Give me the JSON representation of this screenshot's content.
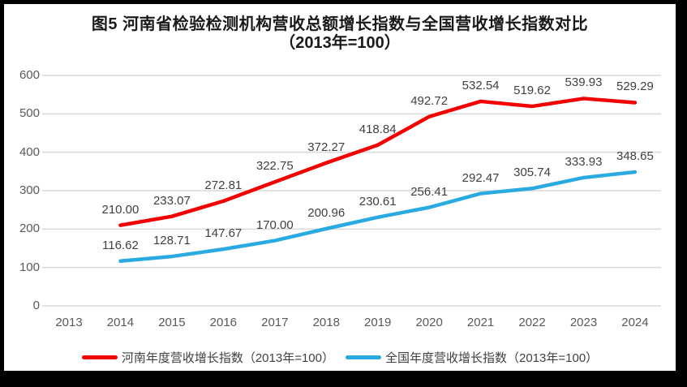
{
  "chart_data": {
    "type": "line",
    "title": "图5  河南省检验检测机构营收总额增长指数与全国营收增长指数对比",
    "subtitle": "（2013年=100）",
    "categories": [
      "2013",
      "2014",
      "2015",
      "2016",
      "2017",
      "2018",
      "2019",
      "2020",
      "2021",
      "2022",
      "2023",
      "2024"
    ],
    "series": [
      {
        "name": "河南年度营收增长指数（2013年=100）",
        "color": "#f40000",
        "values": [
          null,
          210.0,
          233.07,
          272.81,
          322.75,
          372.27,
          418.84,
          492.72,
          532.54,
          519.62,
          539.93,
          529.29
        ]
      },
      {
        "name": "全国年度营收增长指数（2013年=100）",
        "color": "#29abe2",
        "values": [
          null,
          116.62,
          128.71,
          147.67,
          170.0,
          200.96,
          230.61,
          256.41,
          292.47,
          305.74,
          333.93,
          348.65
        ]
      }
    ],
    "ylim": [
      0,
      600
    ],
    "ytick_step": 100,
    "yticks": [
      "0",
      "100",
      "200",
      "300",
      "400",
      "500",
      "600"
    ],
    "grid": true,
    "gridline_color": "#d9d9d9",
    "legend_position": "bottom",
    "data_labels": "above-points, two decimals"
  }
}
